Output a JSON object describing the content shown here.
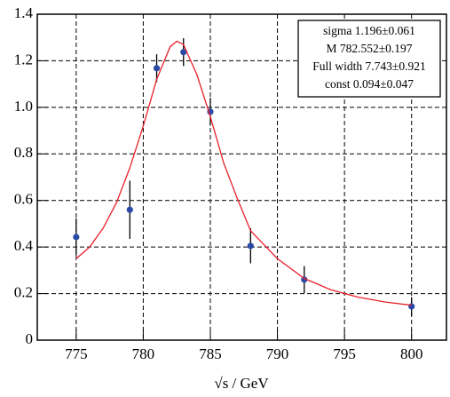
{
  "chart_data": {
    "type": "scatter",
    "xlabel": "√s / GeV",
    "xlim": [
      772.1,
      802.6
    ],
    "xticks": [
      775,
      780,
      785,
      790,
      795,
      800
    ],
    "ylim": [
      0,
      1.4
    ],
    "yticks": [
      0,
      0.2,
      0.4,
      0.6,
      0.8,
      {
        "value": 1,
        "label": "1.0"
      },
      1.2,
      1.4
    ],
    "grid": true,
    "stats": [
      "sigma 1.196±0.061",
      "M 782.552±0.197",
      "Full width 7.743±0.921",
      "const 0.094±0.047"
    ],
    "series": [
      {
        "kind": "points",
        "color": "#2b4aa8",
        "x": [
          775,
          779,
          781,
          783,
          785,
          788,
          792,
          800
        ],
        "values": [
          0.443,
          0.56,
          1.168,
          1.237,
          0.981,
          0.405,
          0.26,
          0.145
        ],
        "errors": [
          0.08,
          0.125,
          0.06,
          0.06,
          0.06,
          0.075,
          0.058,
          0.04
        ]
      },
      {
        "kind": "fit",
        "color": "#e8202a",
        "x": [
          775,
          776,
          777,
          778,
          779,
          780,
          781,
          782,
          782.5,
          783,
          784,
          785,
          786,
          787,
          788,
          789,
          790,
          792,
          794,
          796,
          798,
          800
        ],
        "values": [
          0.35,
          0.4,
          0.48,
          0.59,
          0.74,
          0.92,
          1.12,
          1.26,
          1.284,
          1.27,
          1.14,
          0.96,
          0.76,
          0.61,
          0.47,
          0.41,
          0.35,
          0.265,
          0.216,
          0.185,
          0.164,
          0.15
        ]
      }
    ]
  }
}
